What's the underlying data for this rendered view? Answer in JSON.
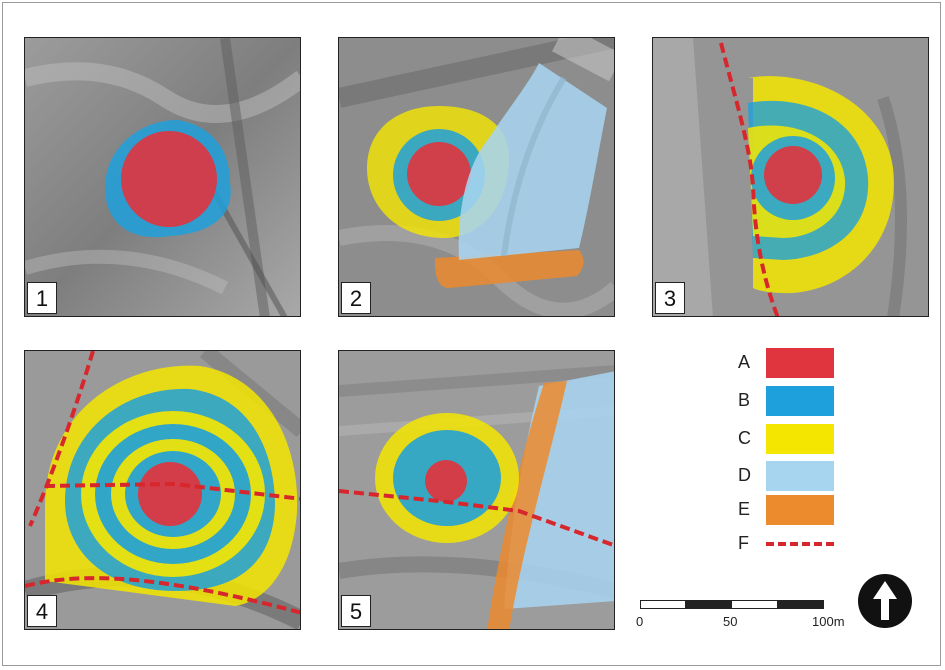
{
  "panels": [
    {
      "label": "1"
    },
    {
      "label": "2"
    },
    {
      "label": "3"
    },
    {
      "label": "4"
    },
    {
      "label": "5"
    }
  ],
  "legend": [
    {
      "letter": "A",
      "color": "#e0343e",
      "style": "swatch"
    },
    {
      "letter": "B",
      "color": "#1ea0dc",
      "style": "swatch"
    },
    {
      "letter": "C",
      "color": "#f5e600",
      "style": "swatch"
    },
    {
      "letter": "D",
      "color": "#a7d4ef",
      "style": "swatch"
    },
    {
      "letter": "E",
      "color": "#ec8a2e",
      "style": "swatch"
    },
    {
      "letter": "F",
      "color": "#d7262c",
      "style": "dashed-line"
    }
  ],
  "scale_bar": {
    "labels": [
      "0",
      "50",
      "100m"
    ]
  },
  "north_arrow": {
    "icon": "north-arrow-icon"
  }
}
